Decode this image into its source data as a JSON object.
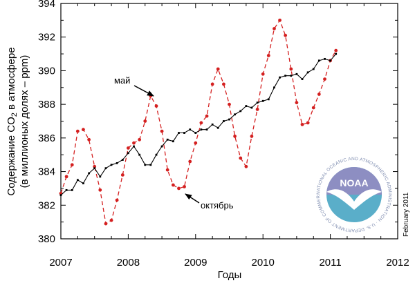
{
  "chart_data": {
    "type": "line",
    "xlabel": "Годы",
    "ylabel_line1": "Содержание CO",
    "ylabel_sub": "2",
    "ylabel_line1_rest": " в атмосфере",
    "ylabel_line2": "(в миллионых долях – ppm)",
    "xlim": [
      2007,
      2012
    ],
    "ylim": [
      380,
      394
    ],
    "xticks": [
      2007,
      2008,
      2009,
      2010,
      2011,
      2012
    ],
    "yticks": [
      380,
      382,
      384,
      386,
      388,
      390,
      392,
      394
    ],
    "grid": false,
    "series": [
      {
        "color": "#d42020",
        "style": "dashed-markers",
        "x": [
          2007.0,
          2007.083,
          2007.167,
          2007.25,
          2007.333,
          2007.417,
          2007.5,
          2007.583,
          2007.667,
          2007.75,
          2007.833,
          2007.917,
          2008.0,
          2008.083,
          2008.167,
          2008.25,
          2008.333,
          2008.417,
          2008.5,
          2008.583,
          2008.667,
          2008.75,
          2008.833,
          2008.917,
          2009.0,
          2009.083,
          2009.167,
          2009.25,
          2009.333,
          2009.417,
          2009.5,
          2009.583,
          2009.667,
          2009.75,
          2009.833,
          2009.917,
          2010.0,
          2010.083,
          2010.167,
          2010.25,
          2010.333,
          2010.417,
          2010.5,
          2010.583,
          2010.667,
          2010.75,
          2010.833,
          2010.917,
          2011.0,
          2011.083
        ],
        "values": [
          382.7,
          383.7,
          384.4,
          386.4,
          386.5,
          385.9,
          384.3,
          382.9,
          380.9,
          381.1,
          382.3,
          383.8,
          385.4,
          385.7,
          385.9,
          387.0,
          388.5,
          387.9,
          386.4,
          384.1,
          383.2,
          383.0,
          383.1,
          384.6,
          385.7,
          386.9,
          387.3,
          389.2,
          390.1,
          389.2,
          388.0,
          386.1,
          384.8,
          384.3,
          386.1,
          387.7,
          389.8,
          390.9,
          392.5,
          393.0,
          392.1,
          390.1,
          388.1,
          386.8,
          386.9,
          387.8,
          388.6,
          389.5,
          390.6,
          391.2
        ]
      },
      {
        "color": "#000000",
        "style": "solid-markers",
        "x": [
          2007.0,
          2007.083,
          2007.167,
          2007.25,
          2007.333,
          2007.417,
          2007.5,
          2007.583,
          2007.667,
          2007.75,
          2007.833,
          2007.917,
          2008.0,
          2008.083,
          2008.167,
          2008.25,
          2008.333,
          2008.417,
          2008.5,
          2008.583,
          2008.667,
          2008.75,
          2008.833,
          2008.917,
          2009.0,
          2009.083,
          2009.167,
          2009.25,
          2009.333,
          2009.417,
          2009.5,
          2009.583,
          2009.667,
          2009.75,
          2009.833,
          2009.917,
          2010.0,
          2010.083,
          2010.167,
          2010.25,
          2010.333,
          2010.417,
          2010.5,
          2010.583,
          2010.667,
          2010.75,
          2010.833,
          2010.917,
          2011.0,
          2011.083
        ],
        "values": [
          382.6,
          382.9,
          382.9,
          383.5,
          383.3,
          383.9,
          384.2,
          383.7,
          384.2,
          384.4,
          384.5,
          384.7,
          385.1,
          385.5,
          385.0,
          384.4,
          384.4,
          385.0,
          385.5,
          385.9,
          385.8,
          386.3,
          386.3,
          386.5,
          386.3,
          386.5,
          386.5,
          386.8,
          386.6,
          387.0,
          387.1,
          387.4,
          387.6,
          387.9,
          387.8,
          388.1,
          388.2,
          388.3,
          389.0,
          389.6,
          389.7,
          389.7,
          389.8,
          389.5,
          389.9,
          390.1,
          390.6,
          390.7,
          390.6,
          391.0
        ]
      }
    ],
    "annotations": [
      {
        "text": "май",
        "x": 2008.333,
        "y": 388.5
      },
      {
        "text": "октябрь",
        "x": 2008.75,
        "y": 383.0
      }
    ],
    "stamp": "February 2011",
    "logo": {
      "name": "noaa-logo",
      "text": "NOAA",
      "ring_text": "NATIONAL OCEANIC AND ATMOSPHERIC ADMINISTRATION · U.S. DEPARTMENT OF COMMERCE"
    }
  }
}
